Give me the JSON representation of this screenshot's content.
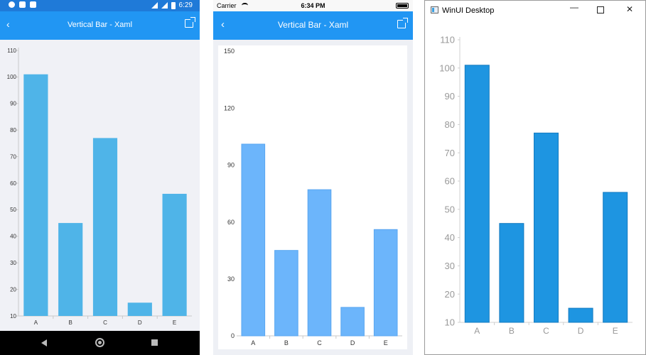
{
  "android": {
    "status_time": "6:29",
    "title": "Vertical Bar - Xaml",
    "back_glyph": "‹",
    "colors": {
      "status": "#1f7ad8",
      "appbar": "#2196f3",
      "bar": "#4fb4e8",
      "background": "#f0f1f6"
    }
  },
  "ios": {
    "carrier": "Carrier",
    "status_time": "6:34 PM",
    "title": "Vertical Bar - Xaml",
    "back_glyph": "‹",
    "colors": {
      "appbar": "#2196f3",
      "bar": "#6cb5fb",
      "background": "#eef0f5"
    }
  },
  "winui": {
    "window_title": "WinUI Desktop",
    "minimize_glyph": "—",
    "close_glyph": "✕",
    "colors": {
      "bar": "#1e95e1"
    }
  },
  "icons": [
    "settings-icon",
    "shield-icon",
    "sd-card-icon",
    "wifi-icon",
    "signal-icon",
    "battery-icon",
    "back-icon",
    "open-external-icon",
    "nav-back-icon",
    "nav-home-icon",
    "nav-recent-icon",
    "app-icon",
    "minimize-icon",
    "maximize-icon",
    "close-icon"
  ],
  "chart_data": [
    {
      "type": "bar",
      "platform": "android",
      "categories": [
        "A",
        "B",
        "C",
        "D",
        "E"
      ],
      "values": [
        101,
        45,
        77,
        15,
        56
      ],
      "ylim": [
        10,
        110
      ],
      "yticks": [
        10,
        20,
        30,
        40,
        50,
        60,
        70,
        80,
        90,
        100,
        110
      ],
      "grid": false
    },
    {
      "type": "bar",
      "platform": "ios",
      "categories": [
        "A",
        "B",
        "C",
        "D",
        "E"
      ],
      "values": [
        101,
        45,
        77,
        15,
        56
      ],
      "ylim": [
        0,
        150
      ],
      "yticks": [
        0,
        30,
        60,
        90,
        120,
        150
      ],
      "grid": false
    },
    {
      "type": "bar",
      "platform": "winui",
      "categories": [
        "A",
        "B",
        "C",
        "D",
        "E"
      ],
      "values": [
        101,
        45,
        77,
        15,
        56
      ],
      "ylim": [
        10,
        110
      ],
      "yticks": [
        10,
        20,
        30,
        40,
        50,
        60,
        70,
        80,
        90,
        100,
        110
      ],
      "grid": false
    }
  ]
}
